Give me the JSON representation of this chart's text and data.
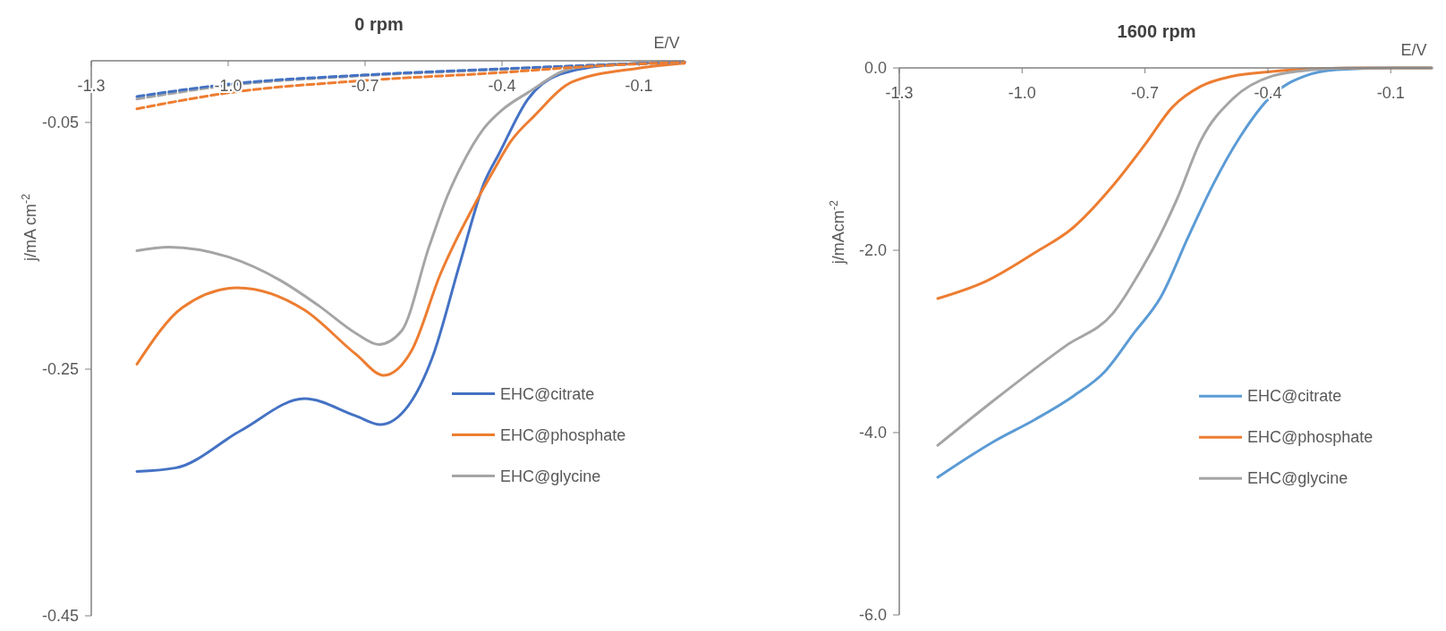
{
  "chart_data": [
    {
      "type": "line",
      "title": "0 rpm",
      "xlabel": "E/V",
      "ylabel": "j/mA cm$^{-2}$",
      "xlim": [
        -1.3,
        0
      ],
      "xticks": [
        -1.3,
        {
          "value": -1,
          "label": "-1.0"
        },
        -0.7,
        -0.4,
        -0.1
      ],
      "ylim": [
        -0.45,
        0
      ],
      "yticks": [
        -0.05,
        -0.25,
        -0.45
      ],
      "grid": false,
      "legend": "bottom right",
      "series": [
        {
          "name": "EHC@citrate",
          "color": "#4472c4",
          "x": [
            -1.2,
            -1.114,
            -0.973,
            -0.833,
            -0.72,
            -0.667,
            -0.606,
            -0.553,
            -0.492,
            -0.439,
            -0.406,
            -0.343,
            -0.273,
            -0.15,
            0
          ],
          "values": [
            -0.333,
            -0.33,
            -0.3,
            -0.274,
            -0.288,
            -0.295,
            -0.28,
            -0.241,
            -0.164,
            -0.099,
            -0.075,
            -0.031,
            -0.011,
            -0.003,
            -0.001
          ]
        },
        {
          "name": "EHC@phosphate",
          "color": "#ed7d31",
          "x": [
            -1.2,
            -1.1,
            -0.98,
            -0.833,
            -0.72,
            -0.659,
            -0.598,
            -0.535,
            -0.449,
            -0.42,
            -0.38,
            -0.33,
            -0.245,
            -0.1,
            0
          ],
          "values": [
            -0.246,
            -0.2,
            -0.184,
            -0.202,
            -0.238,
            -0.255,
            -0.235,
            -0.173,
            -0.109,
            -0.09,
            -0.065,
            -0.045,
            -0.017,
            -0.006,
            -0.002
          ]
        },
        {
          "name": "EHC@glycine",
          "color": "#a5a5a5",
          "x": [
            -1.2,
            -1.13,
            -1.0,
            -0.886,
            -0.8,
            -0.72,
            -0.67,
            -0.62,
            -0.56,
            -0.52,
            -0.49,
            -0.44,
            -0.4,
            -0.344,
            -0.245,
            -0.15,
            0
          ],
          "values": [
            -0.154,
            -0.151,
            -0.159,
            -0.178,
            -0.199,
            -0.221,
            -0.23,
            -0.219,
            -0.151,
            -0.11,
            -0.086,
            -0.055,
            -0.04,
            -0.026,
            -0.006,
            -0.003,
            -0.001
          ]
        },
        {
          "color": "#a5a5a5",
          "line_style": "dashed",
          "x": [
            -1.2,
            -1.0,
            -0.7,
            -0.4,
            -0.23,
            0
          ],
          "values": [
            -0.031,
            -0.02,
            -0.012,
            -0.007,
            -0.004,
            -0.001
          ]
        },
        {
          "color": "#4472c4",
          "line_style": "dashed",
          "x": [
            -1.2,
            -1.0,
            -0.7,
            -0.4,
            -0.23,
            0
          ],
          "values": [
            -0.029,
            -0.019,
            -0.0115,
            -0.0065,
            -0.004,
            -0.001
          ]
        },
        {
          "color": "#ed7d31",
          "line_style": "dashed",
          "x": [
            -1.2,
            -1.0,
            -0.7,
            -0.4,
            -0.23,
            0
          ],
          "values": [
            -0.039,
            -0.026,
            -0.016,
            -0.0095,
            -0.005,
            -0.001
          ]
        }
      ]
    },
    {
      "type": "line",
      "title": "1600 rpm",
      "xlabel": "E/V",
      "ylabel": "j/mAcm$^{-2}$",
      "xlim": [
        -1.3,
        0
      ],
      "xticks": [
        -1.3,
        {
          "value": -1,
          "label": "-1.0"
        },
        -0.7,
        -0.4,
        -0.1
      ],
      "ylim": [
        -6.0,
        0
      ],
      "yticks": [
        {
          "value": 0,
          "label": "0.0"
        },
        {
          "value": -2,
          "label": "-2.0"
        },
        {
          "value": -4,
          "label": "-4.0"
        },
        {
          "value": -6,
          "label": "-6.0"
        }
      ],
      "grid": false,
      "legend": "bottom right",
      "series": [
        {
          "name": "EHC@citrate",
          "color": "#5b9bd5",
          "x": [
            -1.206,
            -1.07,
            -0.97,
            -0.875,
            -0.798,
            -0.729,
            -0.661,
            -0.594,
            -0.535,
            -0.467,
            -0.39,
            -0.31,
            -0.233,
            -0.1,
            0
          ],
          "values": [
            -4.49,
            -4.1,
            -3.86,
            -3.6,
            -3.33,
            -2.92,
            -2.51,
            -1.85,
            -1.29,
            -0.75,
            -0.3,
            -0.09,
            -0.02,
            0,
            0
          ]
        },
        {
          "name": "EHC@phosphate",
          "color": "#ed7d31",
          "x": [
            -1.206,
            -1.088,
            -0.97,
            -0.875,
            -0.778,
            -0.7,
            -0.633,
            -0.563,
            -0.486,
            -0.39,
            -0.29,
            -0.1,
            0
          ],
          "values": [
            -2.53,
            -2.34,
            -2.03,
            -1.75,
            -1.29,
            -0.84,
            -0.43,
            -0.2,
            -0.09,
            -0.04,
            -0.01,
            0,
            0
          ]
        },
        {
          "name": "EHC@glycine",
          "color": "#a5a5a5",
          "x": [
            -1.206,
            -1.07,
            -0.894,
            -0.778,
            -0.7,
            -0.68,
            -0.622,
            -0.563,
            -0.486,
            -0.39,
            -0.29,
            -0.2,
            0
          ],
          "values": [
            -4.14,
            -3.65,
            -3.05,
            -2.69,
            -2.14,
            -1.98,
            -1.44,
            -0.79,
            -0.34,
            -0.09,
            -0.02,
            0,
            0
          ]
        }
      ]
    }
  ]
}
